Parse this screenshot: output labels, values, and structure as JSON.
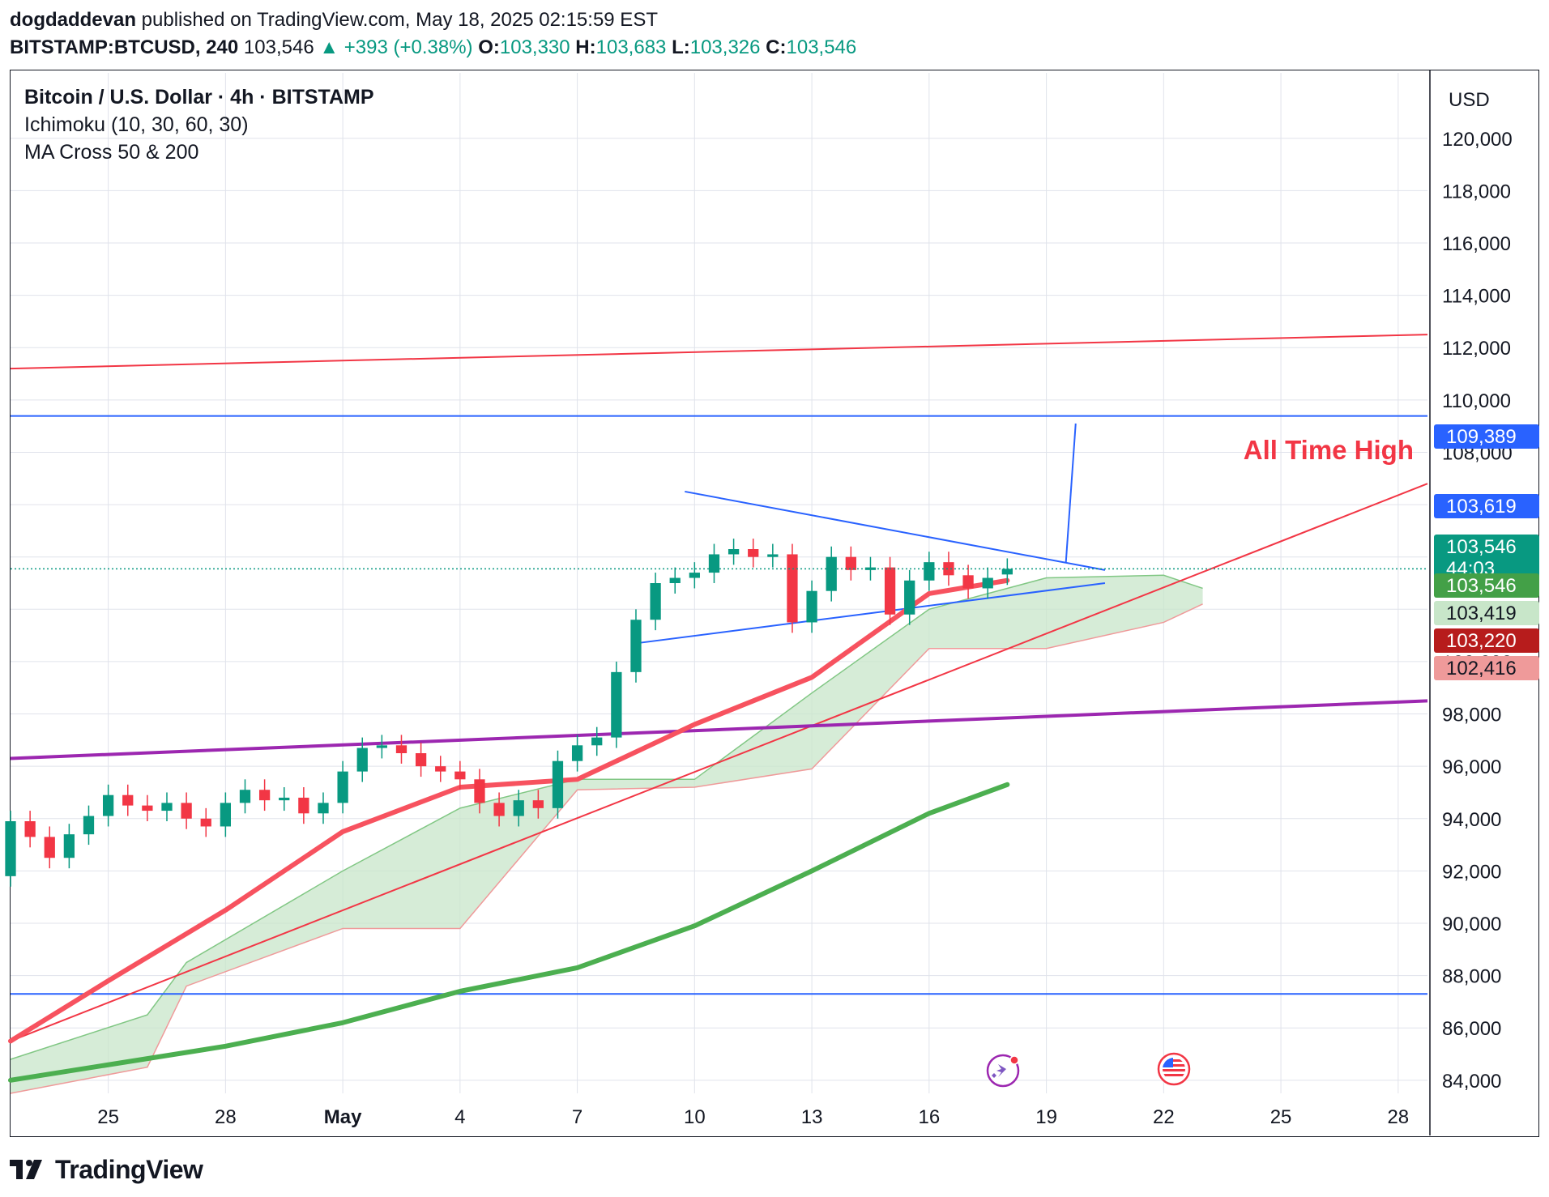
{
  "header": {
    "line1": {
      "author": "dogdaddevan",
      "rest": " published on TradingView.com, May 18, 2025 02:15:59 EST"
    },
    "line2": {
      "symbol": "BITSTAMP:BTCUSD, 240",
      "last": " 103,546 ",
      "change": "▲ +393 (+0.38%)",
      "o_label": " O:",
      "o": "103,330",
      "h_label": " H:",
      "h": "103,683",
      "l_label": " L:",
      "l": "103,326",
      "c_label": " C:",
      "c": "103,546"
    }
  },
  "legend": {
    "title": "Bitcoin / U.S. Dollar · 4h · BITSTAMP",
    "ind1": "Ichimoku (10, 30, 60, 30)",
    "ind2": "MA Cross 50 & 200"
  },
  "footer": {
    "brand": "TradingView"
  },
  "colors": {
    "grid": "#e0e3eb",
    "up": "#089981",
    "down": "#f23645",
    "red_line": "#f23645",
    "blue_line": "#2962ff",
    "purple_line": "#9c27b0",
    "ma50": "#f7525f",
    "ma200": "#4caf50",
    "kumo_fill": "#c8e6c9",
    "chikou": "#43a047",
    "tenkan": "#2962ff",
    "kijun": "#880e4f"
  },
  "chart_data": {
    "type": "candlestick",
    "title": "Bitcoin / U.S. Dollar · 4h · BITSTAMP",
    "currency": "USD",
    "ylim": [
      83500,
      122500
    ],
    "y_ticks": [
      84000,
      86000,
      88000,
      90000,
      92000,
      94000,
      96000,
      98000,
      100000,
      102000,
      104000,
      106000,
      108000,
      110000,
      112000,
      114000,
      116000,
      118000,
      120000
    ],
    "y_tick_labels": [
      "84,000",
      "86,000",
      "88,000",
      "90,000",
      "92,000",
      "94,000",
      "96,000",
      "98,000",
      "100,000",
      "102,000",
      "104,000",
      "106,000",
      "108,000",
      "110,000",
      "112,000",
      "114,000",
      "116,000",
      "118,000",
      "120,000"
    ],
    "x_range_days": [
      "2025-04-22T12:00",
      "2025-05-28T18:00"
    ],
    "x_ticks": [
      {
        "date": "2025-04-25",
        "label": "25"
      },
      {
        "date": "2025-04-28",
        "label": "28"
      },
      {
        "date": "2025-05-01",
        "label": "May"
      },
      {
        "date": "2025-05-04",
        "label": "4"
      },
      {
        "date": "2025-05-07",
        "label": "7"
      },
      {
        "date": "2025-05-10",
        "label": "10"
      },
      {
        "date": "2025-05-13",
        "label": "13"
      },
      {
        "date": "2025-05-16",
        "label": "16"
      },
      {
        "date": "2025-05-19",
        "label": "19"
      },
      {
        "date": "2025-05-22",
        "label": "22"
      },
      {
        "date": "2025-05-25",
        "label": "25"
      },
      {
        "date": "2025-05-28",
        "label": "28"
      }
    ],
    "candles_approx": [
      {
        "t": "2025-04-22T12:00",
        "o": 91800,
        "c": 93900
      },
      {
        "t": "2025-04-23T00:00",
        "o": 93900,
        "c": 93300
      },
      {
        "t": "2025-04-23T12:00",
        "o": 93300,
        "c": 92500
      },
      {
        "t": "2025-04-24T00:00",
        "o": 92500,
        "c": 93400
      },
      {
        "t": "2025-04-24T12:00",
        "o": 93400,
        "c": 94100
      },
      {
        "t": "2025-04-25T00:00",
        "o": 94100,
        "c": 94900
      },
      {
        "t": "2025-04-25T12:00",
        "o": 94900,
        "c": 94500
      },
      {
        "t": "2025-04-26T00:00",
        "o": 94500,
        "c": 94300
      },
      {
        "t": "2025-04-26T12:00",
        "o": 94300,
        "c": 94600
      },
      {
        "t": "2025-04-27T00:00",
        "o": 94600,
        "c": 94000
      },
      {
        "t": "2025-04-27T12:00",
        "o": 94000,
        "c": 93700
      },
      {
        "t": "2025-04-28T00:00",
        "o": 93700,
        "c": 94600
      },
      {
        "t": "2025-04-28T12:00",
        "o": 94600,
        "c": 95100
      },
      {
        "t": "2025-04-29T00:00",
        "o": 95100,
        "c": 94700
      },
      {
        "t": "2025-04-29T12:00",
        "o": 94700,
        "c": 94800
      },
      {
        "t": "2025-04-30T00:00",
        "o": 94800,
        "c": 94200
      },
      {
        "t": "2025-04-30T12:00",
        "o": 94200,
        "c": 94600
      },
      {
        "t": "2025-05-01T00:00",
        "o": 94600,
        "c": 95800
      },
      {
        "t": "2025-05-01T12:00",
        "o": 95800,
        "c": 96700
      },
      {
        "t": "2025-05-02T00:00",
        "o": 96700,
        "c": 96800
      },
      {
        "t": "2025-05-02T12:00",
        "o": 96800,
        "c": 96500
      },
      {
        "t": "2025-05-03T00:00",
        "o": 96500,
        "c": 96000
      },
      {
        "t": "2025-05-03T12:00",
        "o": 96000,
        "c": 95800
      },
      {
        "t": "2025-05-04T00:00",
        "o": 95800,
        "c": 95500
      },
      {
        "t": "2025-05-04T12:00",
        "o": 95500,
        "c": 94600
      },
      {
        "t": "2025-05-05T00:00",
        "o": 94600,
        "c": 94100
      },
      {
        "t": "2025-05-05T12:00",
        "o": 94100,
        "c": 94700
      },
      {
        "t": "2025-05-06T00:00",
        "o": 94700,
        "c": 94400
      },
      {
        "t": "2025-05-06T12:00",
        "o": 94400,
        "c": 96200
      },
      {
        "t": "2025-05-07T00:00",
        "o": 96200,
        "c": 96800
      },
      {
        "t": "2025-05-07T12:00",
        "o": 96800,
        "c": 97100
      },
      {
        "t": "2025-05-08T00:00",
        "o": 97100,
        "c": 99600
      },
      {
        "t": "2025-05-08T12:00",
        "o": 99600,
        "c": 101600
      },
      {
        "t": "2025-05-09T00:00",
        "o": 101600,
        "c": 103000
      },
      {
        "t": "2025-05-09T12:00",
        "o": 103000,
        "c": 103200
      },
      {
        "t": "2025-05-10T00:00",
        "o": 103200,
        "c": 103400
      },
      {
        "t": "2025-05-10T12:00",
        "o": 103400,
        "c": 104100
      },
      {
        "t": "2025-05-11T00:00",
        "o": 104100,
        "c": 104300
      },
      {
        "t": "2025-05-11T12:00",
        "o": 104300,
        "c": 104000
      },
      {
        "t": "2025-05-12T00:00",
        "o": 104000,
        "c": 104100
      },
      {
        "t": "2025-05-12T12:00",
        "o": 104100,
        "c": 101500
      },
      {
        "t": "2025-05-13T00:00",
        "o": 101500,
        "c": 102700
      },
      {
        "t": "2025-05-13T12:00",
        "o": 102700,
        "c": 104000
      },
      {
        "t": "2025-05-14T00:00",
        "o": 104000,
        "c": 103500
      },
      {
        "t": "2025-05-14T12:00",
        "o": 103500,
        "c": 103600
      },
      {
        "t": "2025-05-15T00:00",
        "o": 103600,
        "c": 101800
      },
      {
        "t": "2025-05-15T12:00",
        "o": 101800,
        "c": 103100
      },
      {
        "t": "2025-05-16T00:00",
        "o": 103100,
        "c": 103800
      },
      {
        "t": "2025-05-16T12:00",
        "o": 103800,
        "c": 103300
      },
      {
        "t": "2025-05-17T00:00",
        "o": 103300,
        "c": 102800
      },
      {
        "t": "2025-05-17T12:00",
        "o": 102800,
        "c": 103200
      },
      {
        "t": "2025-05-18T00:00",
        "o": 103330,
        "c": 103546
      }
    ],
    "indicators": {
      "ma50_approx": [
        {
          "t": "2025-04-22T12:00",
          "v": 85500
        },
        {
          "t": "2025-04-25T00:00",
          "v": 87800
        },
        {
          "t": "2025-04-28T00:00",
          "v": 90500
        },
        {
          "t": "2025-05-01T00:00",
          "v": 93500
        },
        {
          "t": "2025-05-04T00:00",
          "v": 95200
        },
        {
          "t": "2025-05-07T00:00",
          "v": 95500
        },
        {
          "t": "2025-05-10T00:00",
          "v": 97600
        },
        {
          "t": "2025-05-13T00:00",
          "v": 99400
        },
        {
          "t": "2025-05-16T00:00",
          "v": 102600
        },
        {
          "t": "2025-05-18T00:00",
          "v": 103100
        }
      ],
      "ma200_approx": [
        {
          "t": "2025-04-22T12:00",
          "v": 84000
        },
        {
          "t": "2025-04-28T00:00",
          "v": 85300
        },
        {
          "t": "2025-05-01T00:00",
          "v": 86200
        },
        {
          "t": "2025-05-04T00:00",
          "v": 87400
        },
        {
          "t": "2025-05-07T00:00",
          "v": 88300
        },
        {
          "t": "2025-05-10T00:00",
          "v": 89900
        },
        {
          "t": "2025-05-13T00:00",
          "v": 92000
        },
        {
          "t": "2025-05-16T00:00",
          "v": 94200
        },
        {
          "t": "2025-05-18T00:00",
          "v": 95300
        }
      ],
      "kumo_approx": [
        {
          "t": "2025-04-22T12:00",
          "top": 84800,
          "bottom": 83500
        },
        {
          "t": "2025-04-26T00:00",
          "top": 86500,
          "bottom": 84500
        },
        {
          "t": "2025-04-27T00:00",
          "top": 88500,
          "bottom": 87600
        },
        {
          "t": "2025-05-01T00:00",
          "top": 92000,
          "bottom": 89800
        },
        {
          "t": "2025-05-04T00:00",
          "top": 94400,
          "bottom": 89800
        },
        {
          "t": "2025-05-07T00:00",
          "top": 95500,
          "bottom": 95100
        },
        {
          "t": "2025-05-10T00:00",
          "top": 95500,
          "bottom": 95200
        },
        {
          "t": "2025-05-13T00:00",
          "top": 98800,
          "bottom": 95900
        },
        {
          "t": "2025-05-16T00:00",
          "top": 102000,
          "bottom": 100500
        },
        {
          "t": "2025-05-19T00:00",
          "top": 103200,
          "bottom": 100500
        },
        {
          "t": "2025-05-22T00:00",
          "top": 103300,
          "bottom": 101500
        },
        {
          "t": "2025-05-23T00:00",
          "top": 102800,
          "bottom": 102200
        }
      ]
    },
    "drawings": {
      "horizontal_lines": [
        109389,
        87300
      ],
      "sloped_lines": [
        {
          "name": "upper-red-resistance",
          "from": {
            "t": "2025-04-22T12:00",
            "v": 111200
          },
          "to": {
            "t": "2025-05-28T18:00",
            "v": 112500
          }
        },
        {
          "name": "red-ascending-trendline",
          "from": {
            "t": "2025-04-22T12:00",
            "v": 85500
          },
          "to": {
            "t": "2025-05-28T18:00",
            "v": 106800
          }
        },
        {
          "name": "purple-trendline",
          "from": {
            "t": "2025-04-22T12:00",
            "v": 96300
          },
          "to": {
            "t": "2025-05-28T18:00",
            "v": 98500
          }
        },
        {
          "name": "triangle-upper",
          "from": {
            "t": "2025-05-09T18:00",
            "v": 106500
          },
          "to": {
            "t": "2025-05-20T12:00",
            "v": 103500
          }
        },
        {
          "name": "triangle-lower",
          "from": {
            "t": "2025-05-08T12:00",
            "v": 100700
          },
          "to": {
            "t": "2025-05-20T12:00",
            "v": 103000
          }
        },
        {
          "name": "breakout-projection",
          "from": {
            "t": "2025-05-19T12:00",
            "v": 103800
          },
          "to": {
            "t": "2025-05-19T18:00",
            "v": 109100
          }
        }
      ],
      "annotation": "All Time High"
    },
    "price_tags": [
      {
        "label": "109,389",
        "color": "#2962ff"
      },
      {
        "label": "103,619",
        "color": "#2962ff"
      },
      {
        "label": "103,546",
        "sublabel": "44:03",
        "color": "#089981"
      },
      {
        "label": "103,546",
        "color": "#43a047"
      },
      {
        "label": "103,419",
        "color": "#c8e6c9",
        "text": "#131722"
      },
      {
        "label": "103,220",
        "color": "#b71c1c"
      },
      {
        "label": "102,416",
        "color": "#ef9a9a",
        "text": "#131722"
      }
    ]
  }
}
